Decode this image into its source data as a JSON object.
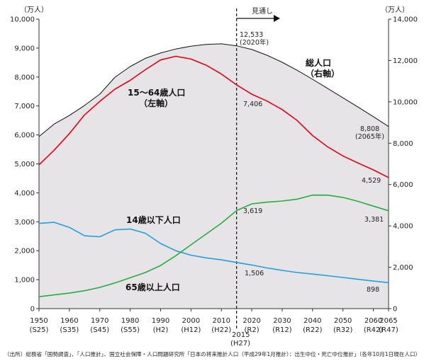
{
  "chart_data": {
    "type": "line",
    "left_axis": {
      "unit": "（万人）",
      "ylim": [
        0,
        10000
      ],
      "ticks": [
        "0",
        "1,000",
        "2,000",
        "3,000",
        "4,000",
        "5,000",
        "6,000",
        "7,000",
        "8,000",
        "9,000",
        "10,000"
      ]
    },
    "right_axis": {
      "unit": "（万人）",
      "ylim": [
        0,
        14000
      ],
      "ticks": [
        "0",
        "2,000",
        "4,000",
        "6,000",
        "8,000",
        "10,000",
        "12,000",
        "14,000"
      ]
    },
    "x_axis": {
      "range": [
        1950,
        2065
      ],
      "ticks": [
        {
          "year": 1950,
          "label": "1950",
          "era": "(S25)"
        },
        {
          "year": 1960,
          "label": "1960",
          "era": "(S35)"
        },
        {
          "year": 1970,
          "label": "1970",
          "era": "(S45)"
        },
        {
          "year": 1980,
          "label": "1980",
          "era": "(S55)"
        },
        {
          "year": 1990,
          "label": "1990",
          "era": "(H2)"
        },
        {
          "year": 2000,
          "label": "2000",
          "era": "(H12)"
        },
        {
          "year": 2010,
          "label": "2010",
          "era": "(H22)"
        },
        {
          "year": 2020,
          "label": "2020",
          "era": "(R2)"
        },
        {
          "year": 2030,
          "label": "2030",
          "era": "(R12)"
        },
        {
          "year": 2040,
          "label": "2040",
          "era": "(R22)"
        },
        {
          "year": 2050,
          "label": "2050",
          "era": "(R32)"
        },
        {
          "year": 2060,
          "label": "2060",
          "era": "(R42)"
        },
        {
          "year": 2065,
          "label": "2065",
          "era": "(R47)"
        }
      ],
      "marker_year": 2015,
      "marker_label": "2015",
      "marker_era": "(H27)"
    },
    "projection_label": "見通し",
    "series": [
      {
        "name": "総人口",
        "axis": "right",
        "color": "#111111",
        "fill": "#e6e4e6",
        "x": [
          1950,
          1955,
          1960,
          1965,
          1970,
          1975,
          1980,
          1985,
          1990,
          1995,
          2000,
          2005,
          2010,
          2015,
          2020,
          2025,
          2030,
          2035,
          2040,
          2045,
          2050,
          2055,
          2060,
          2065
        ],
        "values": [
          8320,
          8928,
          9342,
          9828,
          10372,
          11194,
          11706,
          12105,
          12361,
          12557,
          12693,
          12777,
          12806,
          12709,
          12533,
          12254,
          11913,
          11522,
          11092,
          10642,
          10192,
          9744,
          9284,
          8808
        ]
      },
      {
        "name": "15～64歳人口",
        "axis": "left",
        "color": "#e60012",
        "x": [
          1950,
          1955,
          1960,
          1965,
          1970,
          1975,
          1980,
          1985,
          1990,
          1995,
          2000,
          2005,
          2010,
          2015,
          2020,
          2025,
          2030,
          2035,
          2040,
          2045,
          2050,
          2055,
          2060,
          2065
        ],
        "values": [
          4966,
          5473,
          6047,
          6693,
          7157,
          7581,
          7884,
          8251,
          8590,
          8716,
          8622,
          8409,
          8103,
          7728,
          7406,
          7170,
          6875,
          6494,
          5978,
          5584,
          5275,
          5028,
          4793,
          4529
        ]
      },
      {
        "name": "14歳以下人口",
        "axis": "left",
        "color": "#1fa0e0",
        "x": [
          1950,
          1955,
          1960,
          1965,
          1970,
          1975,
          1980,
          1985,
          1990,
          1995,
          2000,
          2005,
          2010,
          2015,
          2020,
          2025,
          2030,
          2035,
          2040,
          2045,
          2050,
          2055,
          2060,
          2065
        ],
        "values": [
          2943,
          2980,
          2807,
          2517,
          2482,
          2722,
          2751,
          2603,
          2249,
          2001,
          1847,
          1752,
          1684,
          1595,
          1506,
          1407,
          1321,
          1246,
          1194,
          1138,
          1077,
          1012,
          951,
          898
        ]
      },
      {
        "name": "65歳以上人口",
        "axis": "left",
        "color": "#27ad3f",
        "x": [
          1950,
          1955,
          1960,
          1965,
          1970,
          1975,
          1980,
          1985,
          1990,
          1995,
          2000,
          2005,
          2010,
          2015,
          2020,
          2025,
          2030,
          2035,
          2040,
          2045,
          2050,
          2055,
          2060,
          2065
        ],
        "values": [
          411,
          475,
          535,
          618,
          733,
          887,
          1065,
          1247,
          1489,
          1826,
          2204,
          2576,
          2948,
          3387,
          3619,
          3677,
          3716,
          3782,
          3921,
          3919,
          3841,
          3704,
          3540,
          3381
        ]
      }
    ],
    "series_labels": {
      "total_line1": "総人口",
      "total_line2": "（右軸）",
      "working_line1": "15～64歳人口",
      "working_line2": "（左軸）",
      "children": "14歳以下人口",
      "elderly": "65歳以上人口"
    },
    "annotations": {
      "total_2020_value": "12,533",
      "total_2020_year": "(2020年)",
      "total_2065_value": "8,808",
      "total_2065_year": "(2065年)",
      "working_2020": "7,406",
      "working_2065": "4,529",
      "elderly_2020": "3,619",
      "elderly_2065": "3,381",
      "children_2020": "1,506",
      "children_2065": "898"
    },
    "source": "（出所）総務省「国勢調査」、「人口推計」、国立社会保障・人口問題研究所「日本の将来推計人口（平成29年1月推計）：出生中位・死亡中位推計」（各年10月1日現在人口）"
  }
}
